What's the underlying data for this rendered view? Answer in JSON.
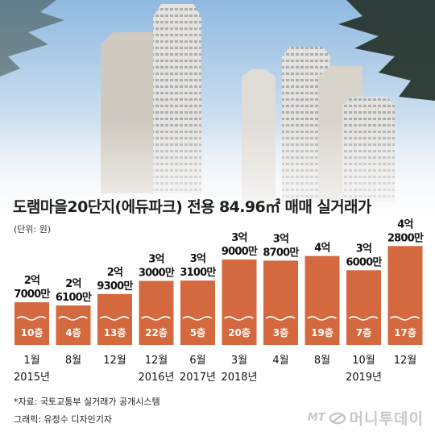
{
  "header": {
    "title": "도램마을20단지(에듀파크) 전용 84.96㎡ 매매 실거래가",
    "unit": "(단위: 원)"
  },
  "footer": {
    "source": "*자료: 국토교통부 실거래가 공개시스템",
    "credit": "그래픽: 유정수 디자인기자",
    "watermark_mark": "MT",
    "watermark_name": "머니투데이"
  },
  "colors": {
    "bar": "#d4683e",
    "bar_text": "#ffffff",
    "wave": "#ffffff"
  },
  "chart_data": {
    "type": "bar",
    "title": "도램마을20단지(에듀파크) 전용 84.96㎡ 매매 실거래가",
    "unit_label": "(단위: 원)",
    "categories": [
      "1월",
      "8월",
      "12월",
      "12월",
      "6월",
      "3월",
      "4월",
      "8월",
      "10월",
      "12월"
    ],
    "years": [
      "2015년",
      "",
      "",
      "2016년",
      "2017년",
      "2018년",
      "",
      "",
      "2019년",
      ""
    ],
    "values": [
      270000000,
      261000000,
      293000000,
      330000000,
      331000000,
      390000000,
      387000000,
      400000000,
      360000000,
      428000000
    ],
    "value_labels": [
      [
        "2억",
        "7000만"
      ],
      [
        "2억",
        "6100만"
      ],
      [
        "2억",
        "9300만"
      ],
      [
        "3억",
        "3000만"
      ],
      [
        "3억",
        "3100만"
      ],
      [
        "3억",
        "9000만"
      ],
      [
        "3억",
        "8700만"
      ],
      [
        "4억"
      ],
      [
        "3억",
        "6000만"
      ],
      [
        "4억",
        "2800만"
      ]
    ],
    "floors": [
      "10층",
      "4층",
      "13층",
      "22층",
      "5층",
      "20층",
      "3층",
      "19층",
      "7층",
      "17층"
    ],
    "ylim": [
      150000000,
      440000000
    ],
    "grid": false,
    "legend": "none"
  }
}
